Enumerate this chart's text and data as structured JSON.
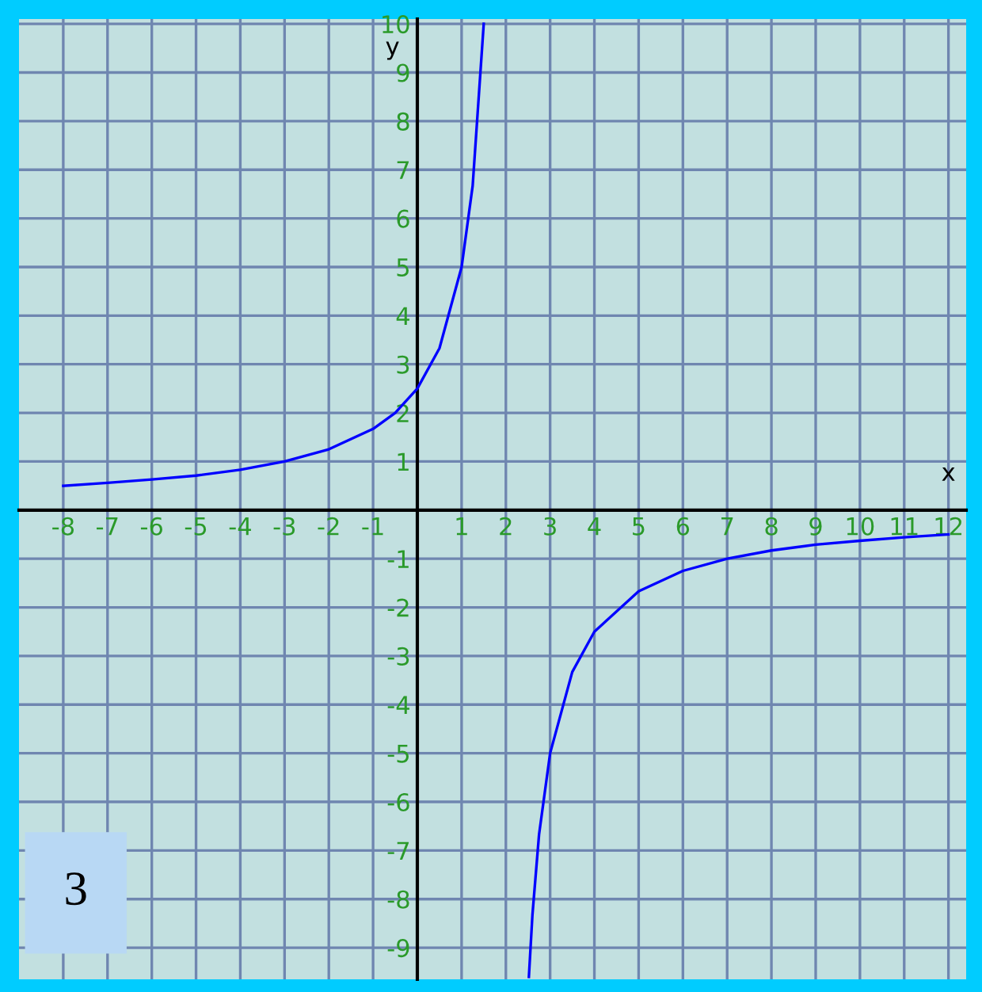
{
  "chart_data": {
    "type": "line",
    "xlabel": "x",
    "ylabel": "y",
    "xlim": [
      -9,
      12.4
    ],
    "ylim": [
      -9.65,
      10.1
    ],
    "xticks": [
      -8,
      -7,
      -6,
      -5,
      -4,
      -3,
      -2,
      -1,
      1,
      2,
      3,
      4,
      5,
      6,
      7,
      8,
      9,
      10,
      11,
      12
    ],
    "yticks": [
      -9,
      -8,
      -7,
      -6,
      -5,
      -4,
      -3,
      -2,
      -1,
      1,
      2,
      3,
      4,
      5,
      6,
      7,
      8,
      9,
      10
    ],
    "grid": true,
    "marker": "none",
    "line_style": "solid",
    "annotations": [
      "3"
    ],
    "series": [
      {
        "color": "#0000ff",
        "x": [
          -8,
          -7,
          -6,
          -5,
          -4,
          -3,
          -2,
          -1,
          -0.5,
          0,
          0.5,
          1,
          1.25,
          1.5
        ],
        "values": [
          0.5,
          0.56,
          0.63,
          0.71,
          0.83,
          1.0,
          1.25,
          1.67,
          2.0,
          2.5,
          3.33,
          5.0,
          6.67,
          10.0
        ]
      },
      {
        "color": "#0000ff",
        "x": [
          2.52,
          2.6,
          2.75,
          3,
          3.5,
          4,
          5,
          6,
          7,
          8,
          9,
          10,
          11,
          12
        ],
        "values": [
          -9.6,
          -8.33,
          -6.67,
          -5.0,
          -3.33,
          -2.5,
          -1.67,
          -1.25,
          -1.0,
          -0.83,
          -0.71,
          -0.63,
          -0.56,
          -0.5
        ]
      }
    ]
  }
}
